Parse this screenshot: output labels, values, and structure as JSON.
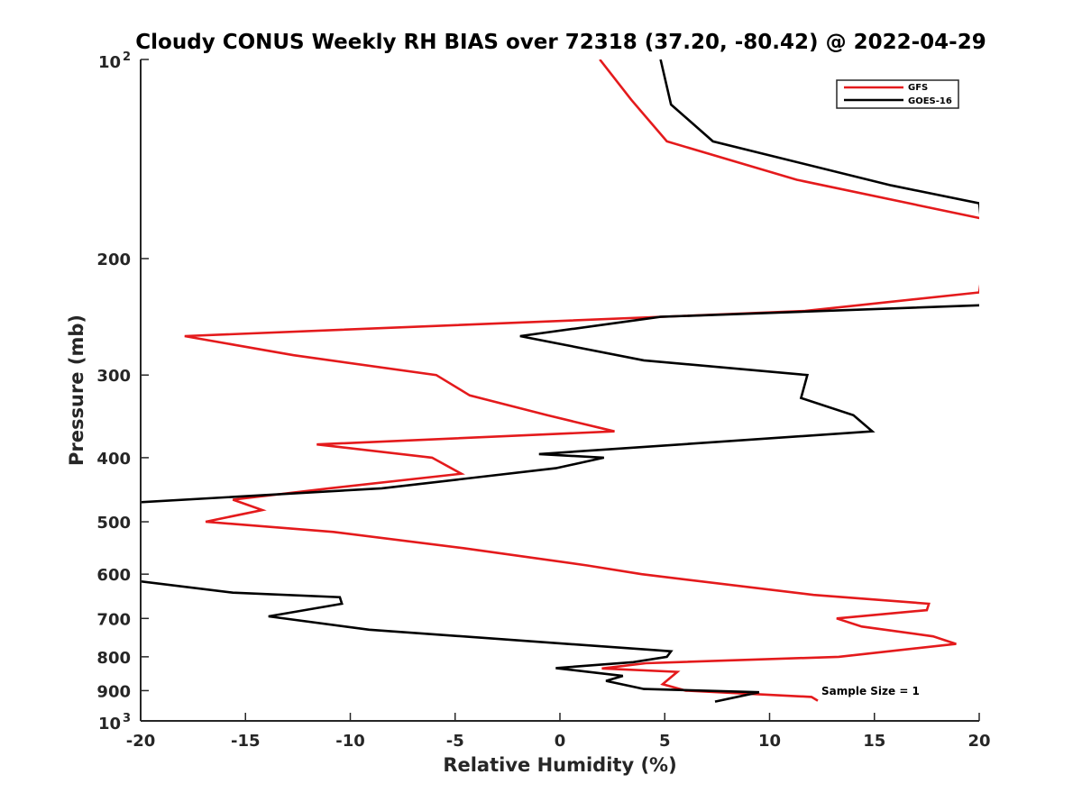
{
  "chart_data": {
    "type": "line",
    "title": "Cloudy CONUS Weekly RH BIAS over 72318 (37.20, -80.42) @ 2022-04-29",
    "xlabel": "Relative Humidity (%)",
    "ylabel": "Pressure (mb)",
    "xlim": [
      -20,
      20
    ],
    "ylim": [
      1000,
      100
    ],
    "yscale": "log",
    "y_reversed": true,
    "x_ticks": [
      -20,
      -15,
      -10,
      -5,
      0,
      5,
      10,
      15,
      20
    ],
    "x_tick_labels": [
      "-20",
      "-15",
      "-10",
      "-5",
      "0",
      "5",
      "10",
      "15",
      "20"
    ],
    "y_ticks": [
      100,
      200,
      300,
      400,
      500,
      600,
      700,
      800,
      900,
      1000
    ],
    "y_tick_labels": [
      {
        "base": "10",
        "sup": "2"
      },
      {
        "text": "200"
      },
      {
        "text": "300"
      },
      {
        "text": "400"
      },
      {
        "text": "500"
      },
      {
        "text": "600"
      },
      {
        "text": "700"
      },
      {
        "text": "800"
      },
      {
        "text": "900"
      },
      {
        "base": "10",
        "sup": "3"
      }
    ],
    "legend_position": "top-right",
    "annotation": "Sample Size = 1",
    "series": [
      {
        "name": "GFS",
        "color": "#e41a1c",
        "points": [
          {
            "x": 1.9,
            "p": 100
          },
          {
            "x": 3.4,
            "p": 115
          },
          {
            "x": 5.1,
            "p": 133
          },
          {
            "x": 11.3,
            "p": 152
          },
          {
            "x": 20.5,
            "p": 175
          },
          {
            "x": 20,
            "p": 225
          },
          {
            "x": 11.7,
            "p": 240
          },
          {
            "x": -17.9,
            "p": 262
          },
          {
            "x": -12.7,
            "p": 280
          },
          {
            "x": -5.9,
            "p": 300
          },
          {
            "x": -4.3,
            "p": 322
          },
          {
            "x": -0.6,
            "p": 345
          },
          {
            "x": 2.6,
            "p": 365
          },
          {
            "x": -11.6,
            "p": 382
          },
          {
            "x": -6.1,
            "p": 400
          },
          {
            "x": -4.7,
            "p": 423
          },
          {
            "x": -11.0,
            "p": 445
          },
          {
            "x": -15.6,
            "p": 463
          },
          {
            "x": -14.2,
            "p": 480
          },
          {
            "x": -16.9,
            "p": 500
          },
          {
            "x": -10.8,
            "p": 518
          },
          {
            "x": -4.6,
            "p": 548
          },
          {
            "x": 1.3,
            "p": 582
          },
          {
            "x": 3.9,
            "p": 600
          },
          {
            "x": 12.1,
            "p": 645
          },
          {
            "x": 17.6,
            "p": 665
          },
          {
            "x": 17.5,
            "p": 680
          },
          {
            "x": 13.2,
            "p": 700
          },
          {
            "x": 14.4,
            "p": 720
          },
          {
            "x": 17.8,
            "p": 745
          },
          {
            "x": 18.9,
            "p": 765
          },
          {
            "x": 13.3,
            "p": 800
          },
          {
            "x": 4.1,
            "p": 818
          },
          {
            "x": 2.0,
            "p": 833
          },
          {
            "x": 5.6,
            "p": 843
          },
          {
            "x": 4.9,
            "p": 880
          },
          {
            "x": 6.0,
            "p": 900
          },
          {
            "x": 12.0,
            "p": 920
          },
          {
            "x": 12.3,
            "p": 932
          }
        ]
      },
      {
        "name": "GOES-16",
        "color": "#000000",
        "points": [
          {
            "x": 4.8,
            "p": 100
          },
          {
            "x": 5.3,
            "p": 117
          },
          {
            "x": 7.3,
            "p": 133
          },
          {
            "x": 15.8,
            "p": 155
          },
          {
            "x": 20,
            "p": 165
          },
          {
            "x": 20.5,
            "p": 235
          },
          {
            "x": 4.8,
            "p": 245
          },
          {
            "x": -1.9,
            "p": 262
          },
          {
            "x": 4.0,
            "p": 285
          },
          {
            "x": 11.8,
            "p": 300
          },
          {
            "x": 11.5,
            "p": 325
          },
          {
            "x": 14.0,
            "p": 345
          },
          {
            "x": 14.9,
            "p": 365
          },
          {
            "x": -1.0,
            "p": 395
          },
          {
            "x": 2.1,
            "p": 400
          },
          {
            "x": -0.2,
            "p": 415
          },
          {
            "x": -8.5,
            "p": 445
          },
          {
            "x": -20.5,
            "p": 468
          },
          {
            "x": -21,
            "p": 610
          },
          {
            "x": -15.6,
            "p": 640
          },
          {
            "x": -10.5,
            "p": 650
          },
          {
            "x": -10.4,
            "p": 665
          },
          {
            "x": -13.9,
            "p": 695
          },
          {
            "x": -9.1,
            "p": 728
          },
          {
            "x": 4.6,
            "p": 782
          },
          {
            "x": 5.3,
            "p": 785
          },
          {
            "x": 5.1,
            "p": 800
          },
          {
            "x": 3.5,
            "p": 815
          },
          {
            "x": -0.2,
            "p": 832
          },
          {
            "x": 3.0,
            "p": 855
          },
          {
            "x": 2.2,
            "p": 870
          },
          {
            "x": 4.0,
            "p": 895
          },
          {
            "x": 9.5,
            "p": 905
          },
          {
            "x": 7.4,
            "p": 935
          }
        ]
      }
    ]
  }
}
